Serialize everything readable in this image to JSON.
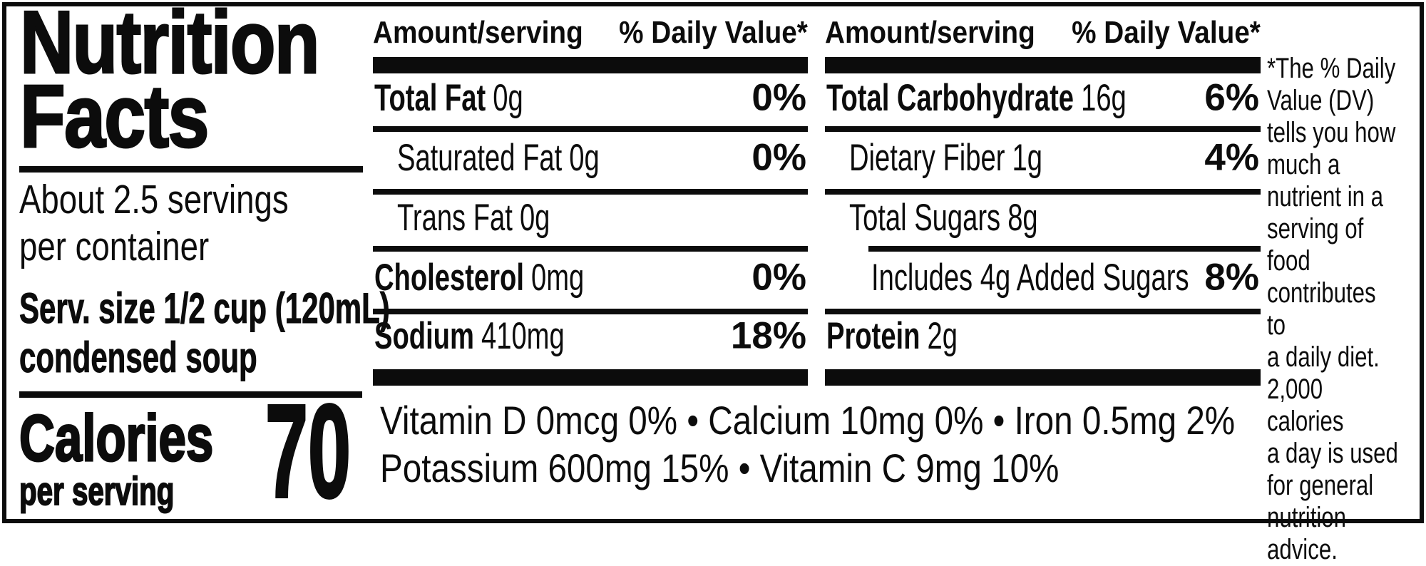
{
  "title": {
    "line1": "Nutrition",
    "line2": "Facts"
  },
  "servings": {
    "line1": "About 2.5 servings",
    "line2": "per container"
  },
  "serving_size": {
    "line1": "Serv. size 1/2 cup (120mL)",
    "line2": "condensed soup"
  },
  "calories": {
    "label": "Calories",
    "sublabel": "per serving",
    "value": "70"
  },
  "table_headers": {
    "amount": "Amount/serving",
    "dv": "% Daily Value*"
  },
  "left_table": {
    "rows": [
      {
        "label": "Total Fat",
        "amount": "0g",
        "dv": "0%"
      },
      {
        "label": "Saturated Fat",
        "amount": "0g",
        "dv": "0%"
      },
      {
        "label": "Trans Fat",
        "amount": "0g",
        "dv": ""
      },
      {
        "label": "Cholesterol",
        "amount": "0mg",
        "dv": "0%"
      },
      {
        "label": "Sodium",
        "amount": "410mg",
        "dv": "18%"
      }
    ]
  },
  "right_table": {
    "rows": [
      {
        "label": "Total Carbohydrate",
        "amount": "16g",
        "dv": "6%"
      },
      {
        "label": "Dietary Fiber",
        "amount": "1g",
        "dv": "4%"
      },
      {
        "label": "Total Sugars",
        "amount": "8g",
        "dv": ""
      },
      {
        "label": "Includes 4g Added Sugars",
        "amount": "",
        "dv": "8%"
      },
      {
        "label": "Protein",
        "amount": "2g",
        "dv": ""
      }
    ]
  },
  "vitamins": {
    "line1": "Vitamin D 0mcg 0% • Calcium 10mg 0% • Iron 0.5mg 2%",
    "line2": "Potassium 600mg 15% • Vitamin C 9mg 10%"
  },
  "footnote": {
    "text": "*The % Daily\nValue (DV)\ntells you how\nmuch a\nnutrient in a\nserving of food\ncontributes to\na daily diet.\n2,000 calories\na day is used\nfor general\nnutrition\nadvice."
  },
  "colors": {
    "ink": "#0c0c0c",
    "paper": "#ffffff"
  }
}
